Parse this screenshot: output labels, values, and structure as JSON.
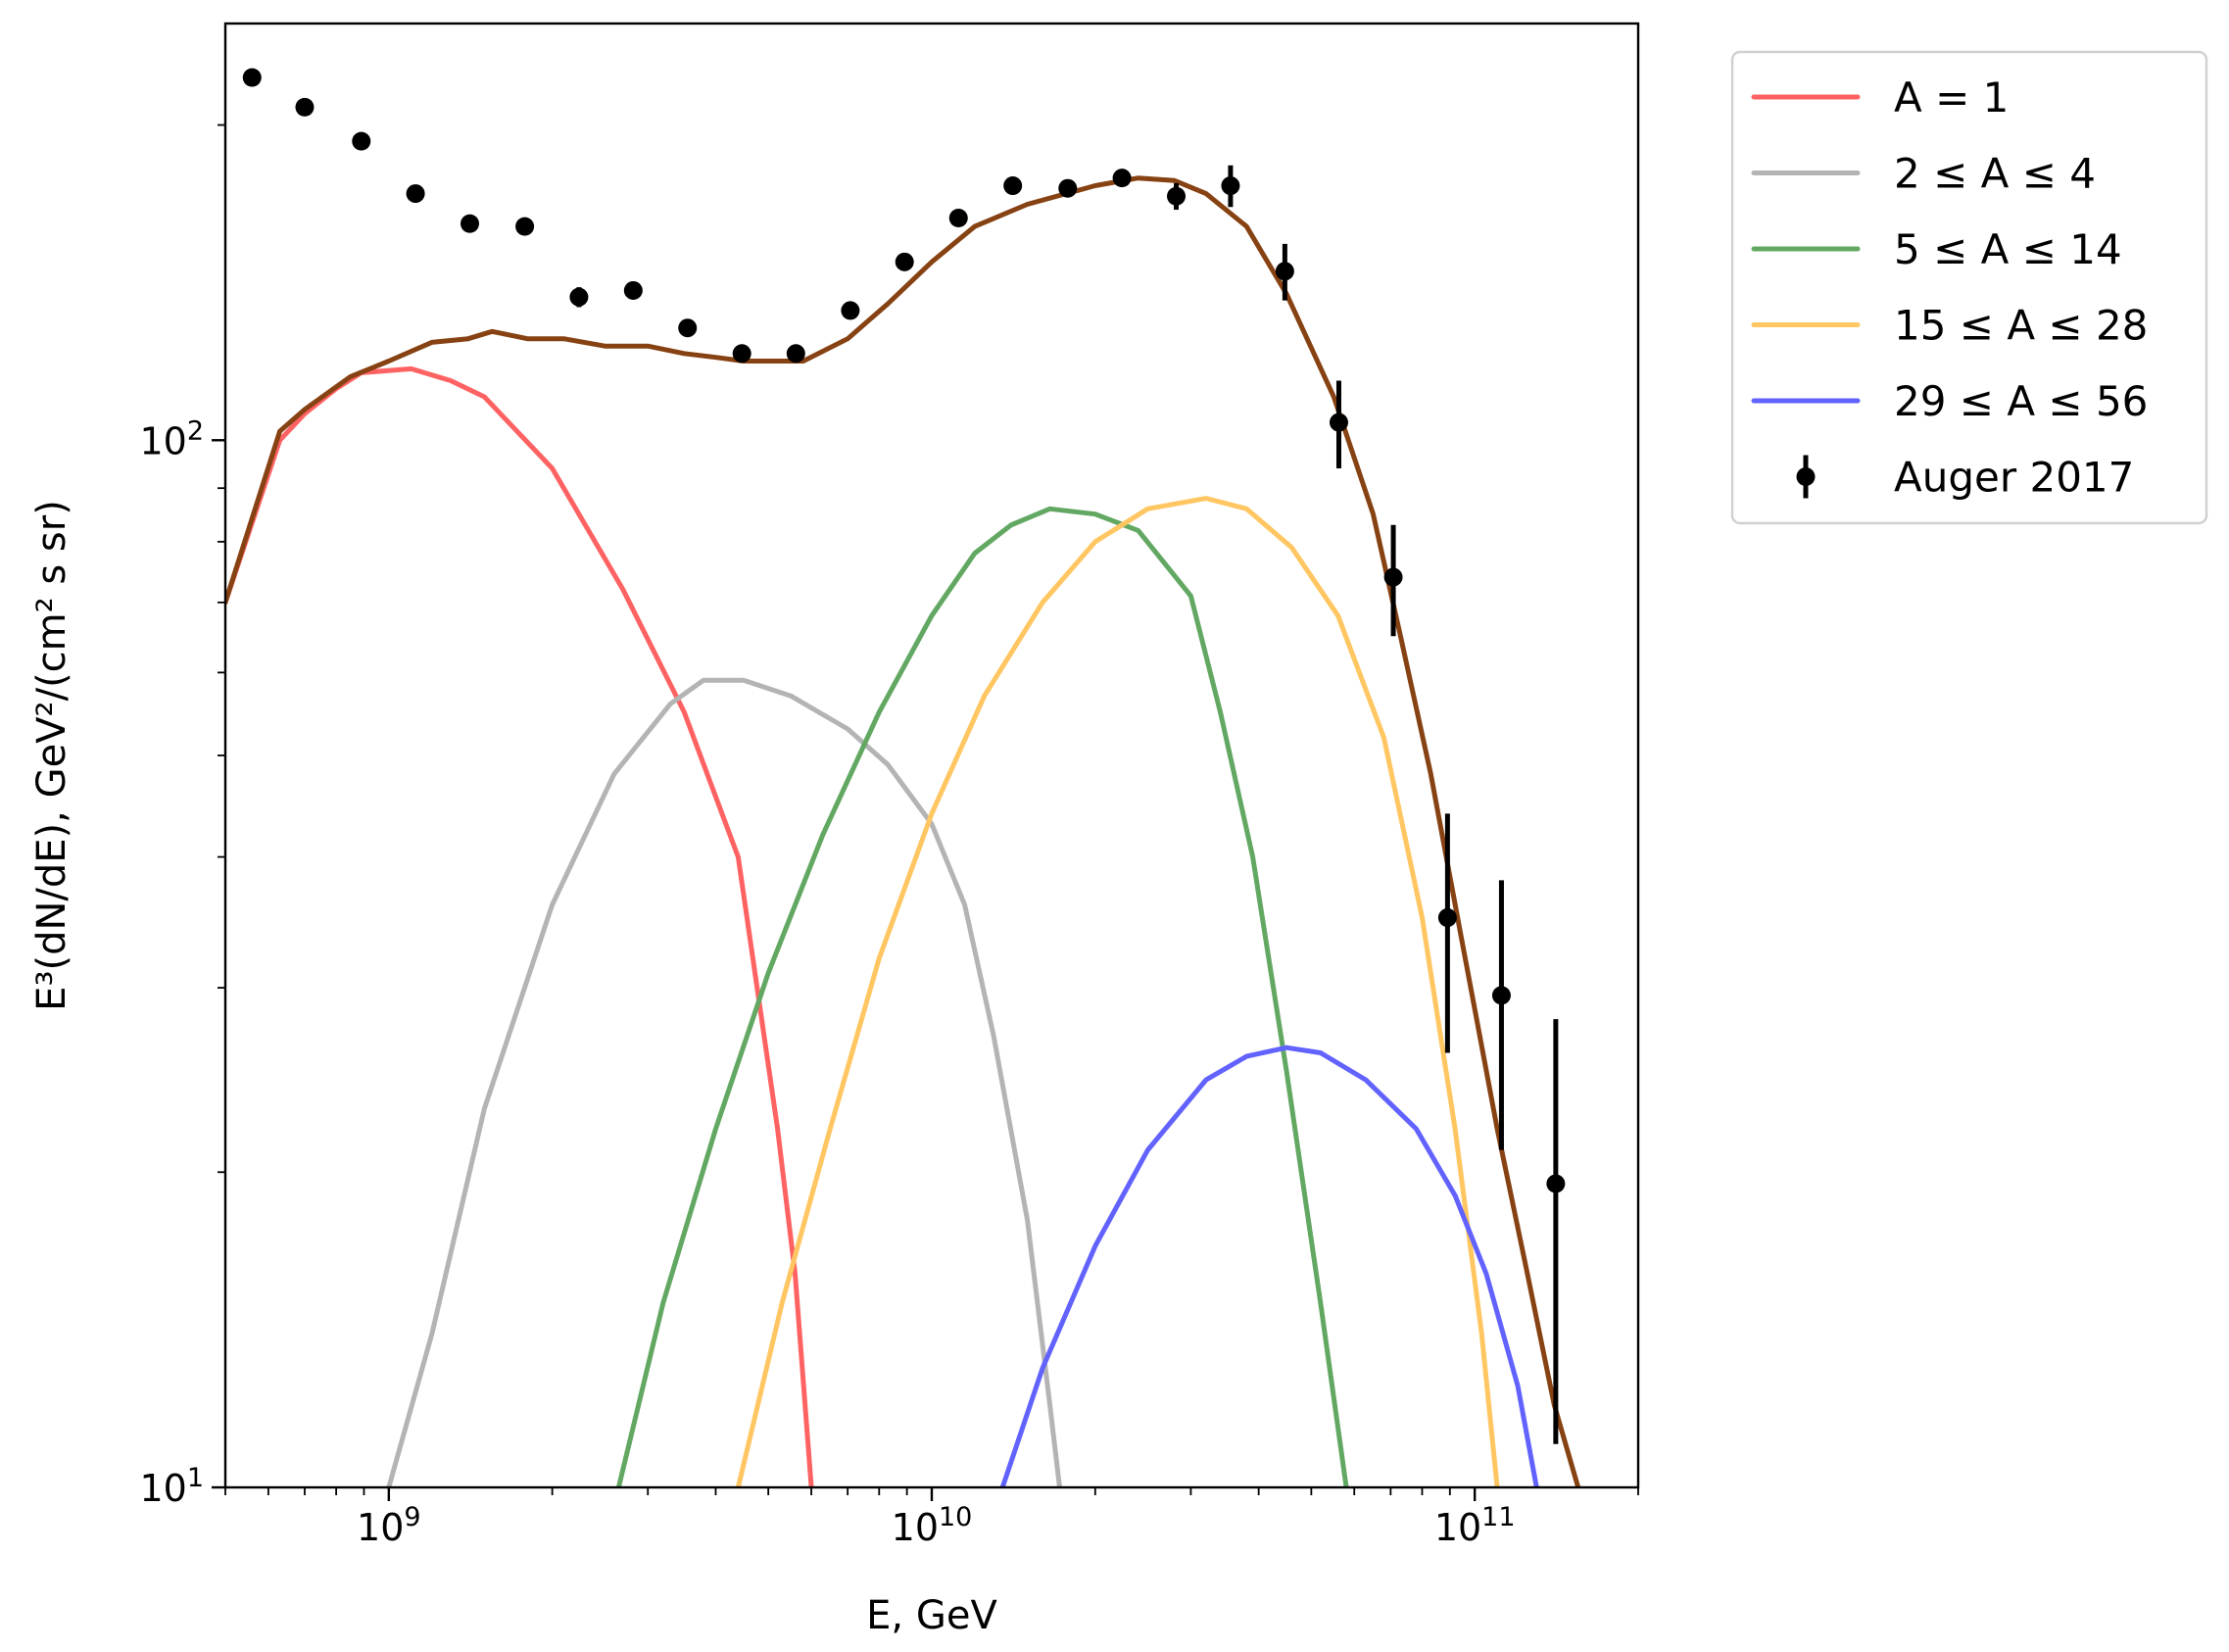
{
  "chart_data": {
    "type": "line",
    "xlabel": "E, GeV",
    "ylabel": "E³(dN/dE), GeV²/(cm² s sr)",
    "xscale": "log",
    "yscale": "log",
    "xlim": [
      500000000.0,
      200000000000.0
    ],
    "ylim": [
      10,
      250
    ],
    "x_tick_labels": [
      {
        "value": 1000000000.0,
        "base": "10",
        "exp": "9"
      },
      {
        "value": 10000000000.0,
        "base": "10",
        "exp": "10"
      },
      {
        "value": 100000000000.0,
        "base": "10",
        "exp": "11"
      }
    ],
    "y_tick_labels": [
      {
        "value": 10,
        "base": "10",
        "exp": "1"
      },
      {
        "value": 100,
        "base": "10",
        "exp": "2"
      }
    ],
    "legend_position": "outside-right",
    "grid": false,
    "series": [
      {
        "name": "A = 1",
        "color": "#ff6262",
        "points": [
          [
            500000000.0,
            70
          ],
          [
            630000000.0,
            100
          ],
          [
            700000000.0,
            106
          ],
          [
            800000000.0,
            112
          ],
          [
            890000000.0,
            116
          ],
          [
            1100000000.0,
            117
          ],
          [
            1300000000.0,
            114
          ],
          [
            1500000000.0,
            110
          ],
          [
            2000000000.0,
            94
          ],
          [
            2700000000.0,
            72
          ],
          [
            3500000000.0,
            55
          ],
          [
            4400000000.0,
            40
          ],
          [
            5200000000.0,
            22
          ],
          [
            5600000000.0,
            16
          ],
          [
            6000000000.0,
            10
          ]
        ]
      },
      {
        "name": "2 ≤ A ≤ 4",
        "color": "#b4b4b4",
        "points": [
          [
            1000000000.0,
            10
          ],
          [
            1200000000.0,
            14
          ],
          [
            1500000000.0,
            23
          ],
          [
            2000000000.0,
            36
          ],
          [
            2600000000.0,
            48
          ],
          [
            3300000000.0,
            56
          ],
          [
            3800000000.0,
            59
          ],
          [
            4500000000.0,
            59
          ],
          [
            5500000000.0,
            57
          ],
          [
            7000000000.0,
            53
          ],
          [
            8300000000.0,
            49
          ],
          [
            10000000000.0,
            43
          ],
          [
            11500000000.0,
            36
          ],
          [
            13000000000.0,
            27
          ],
          [
            15000000000.0,
            18
          ],
          [
            16500000000.0,
            12
          ],
          [
            17200000000.0,
            10
          ]
        ]
      },
      {
        "name": "5 ≤ A ≤ 14",
        "color": "#62a862",
        "points": [
          [
            2650000000.0,
            10
          ],
          [
            3200000000.0,
            15
          ],
          [
            4000000000.0,
            22
          ],
          [
            5000000000.0,
            31
          ],
          [
            6300000000.0,
            42
          ],
          [
            8000000000.0,
            55
          ],
          [
            10000000000.0,
            68
          ],
          [
            12000000000.0,
            78
          ],
          [
            14000000000.0,
            83
          ],
          [
            16500000000.0,
            86
          ],
          [
            20000000000.0,
            85
          ],
          [
            24000000000.0,
            82
          ],
          [
            30000000000.0,
            71
          ],
          [
            34000000000.0,
            55
          ],
          [
            39000000000.0,
            40
          ],
          [
            45000000000.0,
            25
          ],
          [
            52000000000.0,
            15
          ],
          [
            58000000000.0,
            10
          ]
        ]
      },
      {
        "name": "15 ≤ A ≤ 28",
        "color": "#ffc662",
        "points": [
          [
            4400000000.0,
            10
          ],
          [
            5300000000.0,
            15
          ],
          [
            6500000000.0,
            22
          ],
          [
            8000000000.0,
            32
          ],
          [
            10000000000.0,
            44
          ],
          [
            12500000000.0,
            57
          ],
          [
            16000000000.0,
            70
          ],
          [
            20000000000.0,
            80
          ],
          [
            25000000000.0,
            86
          ],
          [
            32000000000.0,
            88
          ],
          [
            38000000000.0,
            86
          ],
          [
            46000000000.0,
            79
          ],
          [
            56000000000.0,
            68
          ],
          [
            68000000000.0,
            52
          ],
          [
            80000000000.0,
            35
          ],
          [
            92000000000.0,
            22
          ],
          [
            103000000000.0,
            14
          ],
          [
            110000000000.0,
            10
          ]
        ]
      },
      {
        "name": "29 ≤ A ≤ 56",
        "color": "#6262ff",
        "points": [
          [
            13500000000.0,
            10
          ],
          [
            16000000000.0,
            13
          ],
          [
            20000000000.0,
            17
          ],
          [
            25000000000.0,
            21
          ],
          [
            32000000000.0,
            24.5
          ],
          [
            38000000000.0,
            25.8
          ],
          [
            45000000000.0,
            26.3
          ],
          [
            52000000000.0,
            26
          ],
          [
            63000000000.0,
            24.5
          ],
          [
            78000000000.0,
            22
          ],
          [
            92000000000.0,
            19
          ],
          [
            105000000000.0,
            16
          ],
          [
            120000000000.0,
            12.5
          ],
          [
            130000000000.0,
            10
          ]
        ]
      },
      {
        "name": "",
        "color": "#874213",
        "points": [
          [
            500000000.0,
            70
          ],
          [
            630000000.0,
            102
          ],
          [
            700000000.0,
            107
          ],
          [
            850000000.0,
            115
          ],
          [
            1000000000.0,
            119
          ],
          [
            1200000000.0,
            124
          ],
          [
            1400000000.0,
            125
          ],
          [
            1550000000.0,
            127
          ],
          [
            1800000000.0,
            125
          ],
          [
            2100000000.0,
            125
          ],
          [
            2500000000.0,
            123
          ],
          [
            3000000000.0,
            123
          ],
          [
            3500000000.0,
            121
          ],
          [
            4000000000.0,
            120
          ],
          [
            4500000000.0,
            119
          ],
          [
            5000000000.0,
            119
          ],
          [
            5800000000.0,
            119
          ],
          [
            7000000000.0,
            125
          ],
          [
            8300000000.0,
            135
          ],
          [
            10000000000.0,
            148
          ],
          [
            12000000000.0,
            160
          ],
          [
            15000000000.0,
            168
          ],
          [
            20000000000.0,
            175
          ],
          [
            24000000000.0,
            178
          ],
          [
            28000000000.0,
            177
          ],
          [
            32000000000.0,
            172
          ],
          [
            38000000000.0,
            160
          ],
          [
            45000000000.0,
            138
          ],
          [
            55000000000.0,
            110
          ],
          [
            65000000000.0,
            85
          ],
          [
            73000000000.0,
            65
          ],
          [
            83000000000.0,
            48
          ],
          [
            95000000000.0,
            33
          ],
          [
            110000000000.0,
            22
          ],
          [
            125000000000.0,
            16
          ],
          [
            140000000000.0,
            12
          ],
          [
            155000000000.0,
            10
          ]
        ]
      },
      {
        "name": "Auger 2017",
        "color": "#000000",
        "kind": "errorbar",
        "points": [
          {
            "x": 560000000.0,
            "y": 222
          },
          {
            "x": 700000000.0,
            "y": 208
          },
          {
            "x": 890000000.0,
            "y": 193
          },
          {
            "x": 1120000000.0,
            "y": 172
          },
          {
            "x": 1410000000.0,
            "y": 161
          },
          {
            "x": 1780000000.0,
            "y": 160
          },
          {
            "x": 2240000000.0,
            "y": 137,
            "err": 3
          },
          {
            "x": 2820000000.0,
            "y": 139
          },
          {
            "x": 3550000000.0,
            "y": 128
          },
          {
            "x": 4470000000.0,
            "y": 121
          },
          {
            "x": 5620000000.0,
            "y": 121
          },
          {
            "x": 7080000000.0,
            "y": 133
          },
          {
            "x": 8910000000.0,
            "y": 148
          },
          {
            "x": 11200000000.0,
            "y": 163
          },
          {
            "x": 14100000000.0,
            "y": 175
          },
          {
            "x": 17800000000.0,
            "y": 174
          },
          {
            "x": 22400000000.0,
            "y": 178
          },
          {
            "x": 28200000000.0,
            "y": 171,
            "err": 5
          },
          {
            "x": 35500000000.0,
            "y": 175,
            "err": 8
          },
          {
            "x": 44700000000.0,
            "y": 145,
            "err": 9
          },
          {
            "x": 56200000000.0,
            "y": 104,
            "err": 10
          },
          {
            "x": 70800000000.0,
            "y": 74,
            "err": 9
          },
          {
            "x": 89100000000.0,
            "y": 35,
            "err": 9
          },
          {
            "x": 112000000000.0,
            "y": 29.5,
            "err": 8.5
          },
          {
            "x": 141000000000.0,
            "y": 19.5,
            "err": 8.5
          }
        ]
      }
    ]
  }
}
